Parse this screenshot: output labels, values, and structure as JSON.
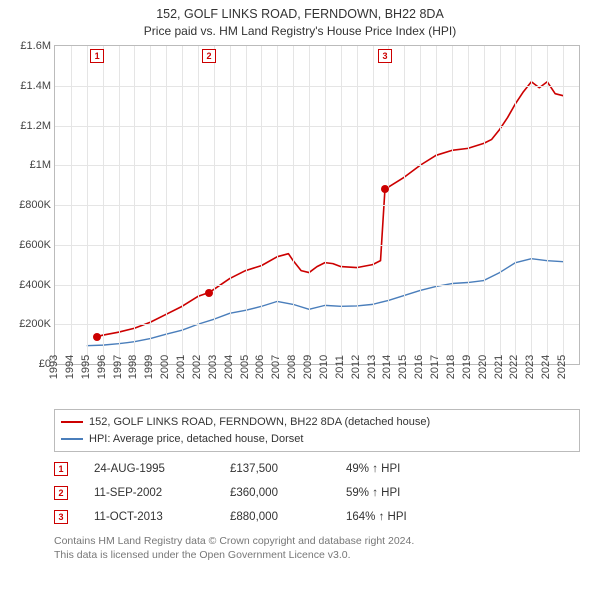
{
  "header": {
    "title": "152, GOLF LINKS ROAD, FERNDOWN, BH22 8DA",
    "subtitle": "Price paid vs. HM Land Registry's House Price Index (HPI)"
  },
  "chart": {
    "type": "line",
    "background_color": "#ffffff",
    "border_color": "#bbbbbb",
    "grid_color": "#e5e5e5",
    "x": {
      "min": 1993,
      "max": 2026,
      "ticks": [
        1993,
        1994,
        1995,
        1996,
        1997,
        1998,
        1999,
        2000,
        2001,
        2002,
        2003,
        2004,
        2005,
        2006,
        2007,
        2008,
        2009,
        2010,
        2011,
        2012,
        2013,
        2014,
        2015,
        2016,
        2017,
        2018,
        2019,
        2020,
        2021,
        2022,
        2023,
        2024,
        2025
      ],
      "tick_labels": [
        "1993",
        "1994",
        "1995",
        "1996",
        "1997",
        "1998",
        "1999",
        "2000",
        "2001",
        "2002",
        "2003",
        "2004",
        "2005",
        "2006",
        "2007",
        "2008",
        "2009",
        "2010",
        "2011",
        "2012",
        "2013",
        "2014",
        "2015",
        "2016",
        "2017",
        "2018",
        "2019",
        "2020",
        "2021",
        "2022",
        "2023",
        "2024",
        "2025"
      ],
      "label_fontsize": 11,
      "label_rotation": -90
    },
    "y": {
      "min": 0,
      "max": 1600000,
      "ticks": [
        0,
        200000,
        400000,
        600000,
        800000,
        1000000,
        1200000,
        1400000,
        1600000
      ],
      "tick_labels": [
        "£0",
        "£200K",
        "£400K",
        "£600K",
        "£800K",
        "£1M",
        "£1.2M",
        "£1.4M",
        "£1.6M"
      ],
      "label_fontsize": 11
    },
    "series": [
      {
        "id": "property",
        "label": "152, GOLF LINKS ROAD, FERNDOWN, BH22 8DA (detached house)",
        "color": "#cc0000",
        "line_width": 1.6,
        "points": [
          [
            1995.65,
            137500
          ],
          [
            1996,
            145000
          ],
          [
            1997,
            160000
          ],
          [
            1998,
            180000
          ],
          [
            1999,
            210000
          ],
          [
            2000,
            250000
          ],
          [
            2001,
            290000
          ],
          [
            2002,
            340000
          ],
          [
            2002.7,
            360000
          ],
          [
            2003,
            375000
          ],
          [
            2004,
            430000
          ],
          [
            2005,
            470000
          ],
          [
            2006,
            495000
          ],
          [
            2007,
            540000
          ],
          [
            2007.7,
            555000
          ],
          [
            2008,
            520000
          ],
          [
            2008.5,
            470000
          ],
          [
            2009,
            460000
          ],
          [
            2009.5,
            490000
          ],
          [
            2010,
            510000
          ],
          [
            2010.5,
            505000
          ],
          [
            2011,
            490000
          ],
          [
            2012,
            485000
          ],
          [
            2013,
            500000
          ],
          [
            2013.5,
            520000
          ],
          [
            2013.78,
            880000
          ],
          [
            2014,
            890000
          ],
          [
            2015,
            940000
          ],
          [
            2016,
            1000000
          ],
          [
            2017,
            1050000
          ],
          [
            2018,
            1075000
          ],
          [
            2019,
            1085000
          ],
          [
            2020,
            1110000
          ],
          [
            2020.5,
            1130000
          ],
          [
            2021,
            1180000
          ],
          [
            2021.5,
            1240000
          ],
          [
            2022,
            1310000
          ],
          [
            2022.5,
            1370000
          ],
          [
            2023,
            1420000
          ],
          [
            2023.5,
            1390000
          ],
          [
            2024,
            1420000
          ],
          [
            2024.5,
            1360000
          ],
          [
            2025,
            1350000
          ]
        ]
      },
      {
        "id": "hpi",
        "label": "HPI: Average price, detached house, Dorset",
        "color": "#4a7ebb",
        "line_width": 1.4,
        "points": [
          [
            1995,
            92000
          ],
          [
            1996,
            95000
          ],
          [
            1997,
            102000
          ],
          [
            1998,
            112000
          ],
          [
            1999,
            128000
          ],
          [
            2000,
            150000
          ],
          [
            2001,
            170000
          ],
          [
            2002,
            200000
          ],
          [
            2003,
            225000
          ],
          [
            2004,
            255000
          ],
          [
            2005,
            270000
          ],
          [
            2006,
            290000
          ],
          [
            2007,
            315000
          ],
          [
            2008,
            300000
          ],
          [
            2009,
            275000
          ],
          [
            2010,
            295000
          ],
          [
            2011,
            290000
          ],
          [
            2012,
            292000
          ],
          [
            2013,
            300000
          ],
          [
            2014,
            320000
          ],
          [
            2015,
            345000
          ],
          [
            2016,
            370000
          ],
          [
            2017,
            390000
          ],
          [
            2018,
            405000
          ],
          [
            2019,
            410000
          ],
          [
            2020,
            420000
          ],
          [
            2021,
            460000
          ],
          [
            2022,
            510000
          ],
          [
            2023,
            530000
          ],
          [
            2024,
            520000
          ],
          [
            2025,
            515000
          ]
        ]
      }
    ],
    "sale_markers": [
      {
        "n": "1",
        "x": 1995.65,
        "y": 137500
      },
      {
        "n": "2",
        "x": 2002.7,
        "y": 360000
      },
      {
        "n": "3",
        "x": 2013.78,
        "y": 880000
      }
    ]
  },
  "legend": {
    "items": [
      {
        "color": "#cc0000",
        "label": "152, GOLF LINKS ROAD, FERNDOWN, BH22 8DA (detached house)"
      },
      {
        "color": "#4a7ebb",
        "label": "HPI: Average price, detached house, Dorset"
      }
    ]
  },
  "sales_table": {
    "rows": [
      {
        "n": "1",
        "date": "24-AUG-1995",
        "price": "£137,500",
        "pct": "49% ↑ HPI"
      },
      {
        "n": "2",
        "date": "11-SEP-2002",
        "price": "£360,000",
        "pct": "59% ↑ HPI"
      },
      {
        "n": "3",
        "date": "11-OCT-2013",
        "price": "£880,000",
        "pct": "164% ↑ HPI"
      }
    ]
  },
  "footer": {
    "line1": "Contains HM Land Registry data © Crown copyright and database right 2024.",
    "line2": "This data is licensed under the Open Government Licence v3.0."
  }
}
